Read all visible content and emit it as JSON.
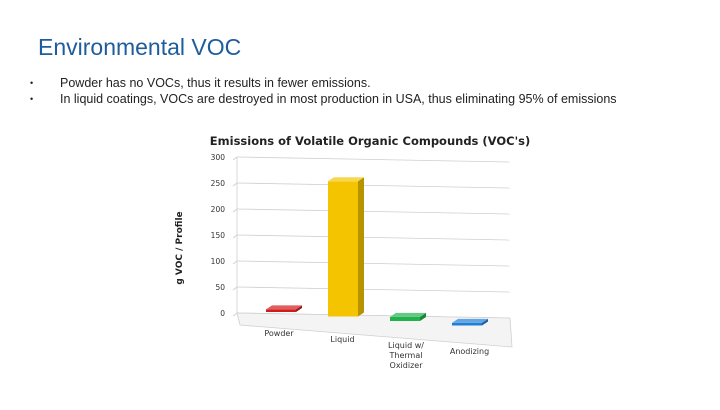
{
  "slide": {
    "title": "Environmental VOC",
    "bullets": [
      "Powder has no VOCs, thus it results in fewer emissions.",
      "In liquid coatings, VOCs are destroyed in most production in USA, thus eliminating 95% of emissions"
    ]
  },
  "chart_data": {
    "type": "bar",
    "style": "3d",
    "title": "Emissions of Volatile Organic Compounds (VOC's)",
    "ylabel": "g VOC / Profile",
    "xlabel": "",
    "categories": [
      "Powder",
      "Liquid",
      "Liquid w/ Thermal Oxidizer",
      "Anodizing"
    ],
    "category_lines": [
      [
        "Powder"
      ],
      [
        "Liquid"
      ],
      [
        "Liquid w/",
        "Thermal",
        "Oxidizer"
      ],
      [
        "Anodizing"
      ]
    ],
    "values": [
      5,
      260,
      8,
      5
    ],
    "colors": [
      "#d11a1a",
      "#f5c400",
      "#22b24c",
      "#1f7fd6"
    ],
    "ylim": [
      0,
      300
    ],
    "yticks": [
      0,
      50,
      100,
      150,
      200,
      250,
      300
    ],
    "grid": true,
    "legend": "none"
  }
}
